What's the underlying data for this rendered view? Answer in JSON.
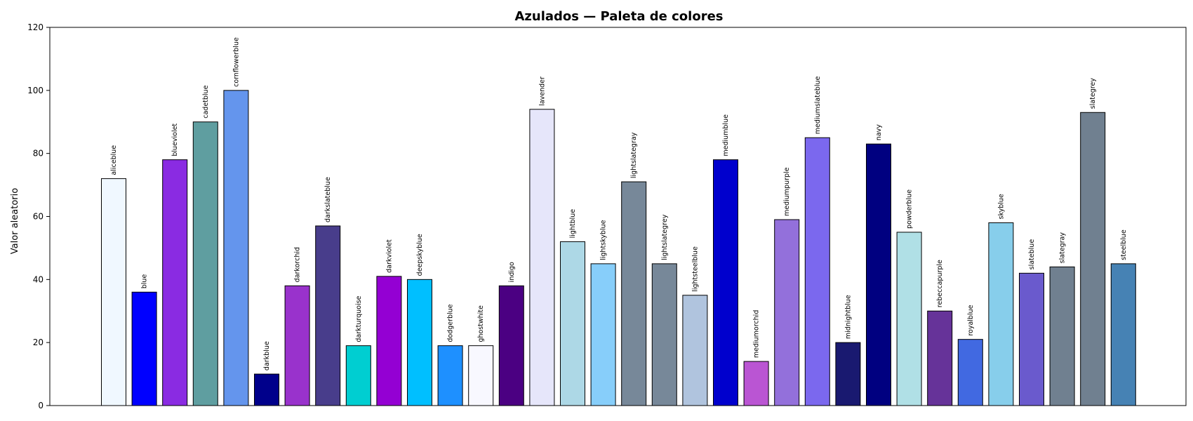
{
  "chart_data": {
    "type": "bar",
    "title": "Azulados — Paleta de colores",
    "xlabel": "",
    "ylabel": "Valor aleatorio",
    "ylim": [
      0,
      120
    ],
    "yticks": [
      0,
      20,
      40,
      60,
      80,
      100,
      120
    ],
    "categories": [
      "aliceblue",
      "blue",
      "blueviolet",
      "cadetblue",
      "cornflowerblue",
      "darkblue",
      "darkorchid",
      "darkslateblue",
      "darkturquoise",
      "darkviolet",
      "deepskyblue",
      "dodgerblue",
      "ghostwhite",
      "indigo",
      "lavender",
      "lightblue",
      "lightskyblue",
      "lightslategray",
      "lightslategrey",
      "lightsteelblue",
      "mediumblue",
      "mediumorchid",
      "mediumpurple",
      "mediumslateblue",
      "midnightblue",
      "navy",
      "powderblue",
      "rebeccapurple",
      "royalblue",
      "skyblue",
      "slateblue",
      "slategray",
      "slategrey",
      "steelblue"
    ],
    "values": [
      72,
      36,
      78,
      90,
      100,
      10,
      38,
      57,
      19,
      41,
      40,
      19,
      19,
      38,
      94,
      52,
      45,
      71,
      45,
      35,
      78,
      14,
      59,
      85,
      20,
      83,
      55,
      30,
      21,
      58,
      42,
      44,
      93,
      45
    ],
    "colors": [
      "#f0f8ff",
      "#0000ff",
      "#8a2be2",
      "#5f9ea0",
      "#6495ed",
      "#00008b",
      "#9932cc",
      "#483d8b",
      "#00ced1",
      "#9400d3",
      "#00bfff",
      "#1e90ff",
      "#f8f8ff",
      "#4b0082",
      "#e6e6fa",
      "#add8e6",
      "#87cefa",
      "#778899",
      "#778899",
      "#b0c4de",
      "#0000cd",
      "#ba55d3",
      "#9370db",
      "#7b68ee",
      "#191970",
      "#000080",
      "#b0e0e6",
      "#663399",
      "#4169e1",
      "#87ceeb",
      "#6a5acd",
      "#708090",
      "#708090",
      "#4682b4"
    ],
    "grid": false,
    "legend": "none"
  }
}
